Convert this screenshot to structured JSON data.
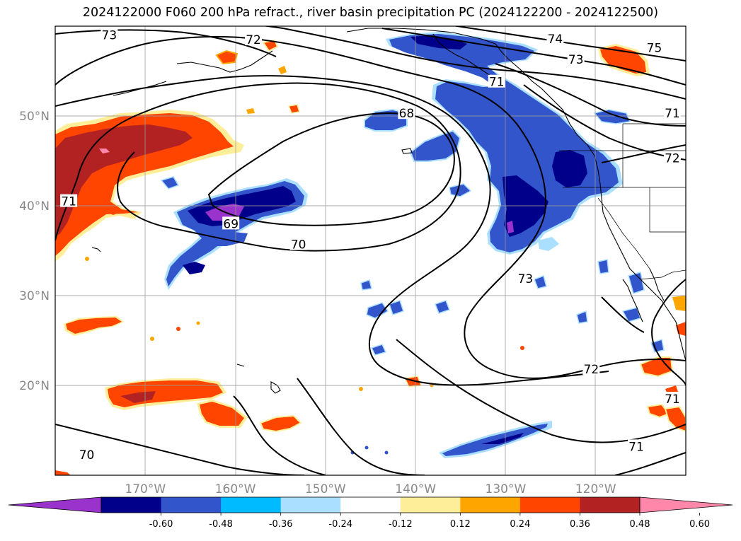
{
  "title": "2024122000 F060 200 hPa refract., river basin precipitation PC (2024122200 - 2024122500)",
  "map": {
    "extent": {
      "lon_min": -180,
      "lon_max": -110,
      "lat_min": 10,
      "lat_max": 60
    },
    "lat_labels": [
      {
        "lat": 50,
        "text": "50°N"
      },
      {
        "lat": 40,
        "text": "40°N"
      },
      {
        "lat": 30,
        "text": "30°N"
      },
      {
        "lat": 20,
        "text": "20°N"
      }
    ],
    "lon_labels": [
      {
        "lon": -170,
        "text": "170°W"
      },
      {
        "lon": -160,
        "text": "160°W"
      },
      {
        "lon": -150,
        "text": "150°W"
      },
      {
        "lon": -140,
        "text": "140°W"
      },
      {
        "lon": -130,
        "text": "130°W"
      },
      {
        "lon": -120,
        "text": "120°W"
      }
    ],
    "contour_labels": [
      {
        "text": "73",
        "lon": -174,
        "lat": 59
      },
      {
        "text": "72",
        "lon": -158,
        "lat": 58.5
      },
      {
        "text": "74",
        "lon": -124.5,
        "lat": 58.6
      },
      {
        "text": "75",
        "lon": -113.5,
        "lat": 57.6
      },
      {
        "text": "73",
        "lon": -122.2,
        "lat": 56.3
      },
      {
        "text": "71",
        "lon": -131,
        "lat": 53.8
      },
      {
        "text": "68",
        "lon": -141,
        "lat": 50.3
      },
      {
        "text": "71",
        "lon": -111.5,
        "lat": 50.3
      },
      {
        "text": "72",
        "lon": -111.5,
        "lat": 45.3
      },
      {
        "text": "71",
        "lon": -178.5,
        "lat": 40.5
      },
      {
        "text": "69",
        "lon": -160.5,
        "lat": 38
      },
      {
        "text": "70",
        "lon": -153,
        "lat": 35.7
      },
      {
        "text": "73",
        "lon": -127.8,
        "lat": 31.9
      },
      {
        "text": "72",
        "lon": -120.5,
        "lat": 21.8
      },
      {
        "text": "71",
        "lon": -111.5,
        "lat": 18.5
      },
      {
        "text": "71",
        "lon": -115.5,
        "lat": 13.2
      },
      {
        "text": "70",
        "lon": -176.5,
        "lat": 12.3
      }
    ]
  },
  "colorbar": {
    "levels": [
      "-0.60",
      "-0.48",
      "-0.36",
      "-0.24",
      "-0.12",
      "0.12",
      "0.24",
      "0.36",
      "0.48",
      "0.60"
    ],
    "colors": [
      "#9933cc",
      "#00008b",
      "#3355cc",
      "#00bbff",
      "#aadfff",
      "#ffffff",
      "#ffee99",
      "#ffa500",
      "#ff4500",
      "#b22222",
      "#ff88aa"
    ]
  },
  "legend_colors": {
    "neg_strong": "#00008b",
    "neg_mid": "#3355cc",
    "neg_light": "#00bbff",
    "neg_pale": "#aadfff",
    "neg_extreme": "#9933cc",
    "pos_light": "#ffee99",
    "pos_mid": "#ffa500",
    "pos_strong": "#ff4500",
    "pos_dark": "#b22222",
    "pos_extreme": "#ff88aa"
  }
}
